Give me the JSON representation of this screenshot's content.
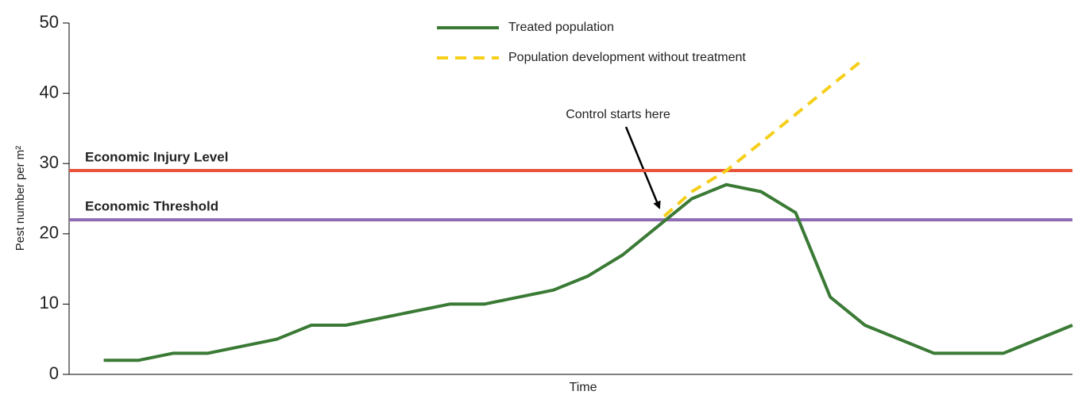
{
  "chart_data": {
    "type": "line",
    "xlabel": "Time",
    "ylabel": "Pest number per m²",
    "xlim": [
      -1,
      28
    ],
    "ylim": [
      0,
      50
    ],
    "yticks": [
      0,
      10,
      20,
      30,
      40,
      50
    ],
    "legend": "top",
    "series": [
      {
        "name": "Treated population",
        "color": "#3a7a35",
        "dash": false,
        "x": [
          0,
          1,
          2,
          3,
          5,
          6,
          7,
          10,
          11,
          13,
          14,
          15,
          16,
          17,
          18,
          19,
          20,
          21,
          22,
          24,
          25,
          26,
          28
        ],
        "values": [
          2,
          2,
          3,
          3,
          5,
          7,
          7,
          10,
          10,
          12,
          14,
          17,
          21,
          25,
          27,
          26,
          23,
          11,
          7,
          3,
          3,
          3,
          7
        ]
      },
      {
        "name": "Population development without treatment",
        "color": "#f5cf1a",
        "dash": true,
        "x": [
          16.2,
          17,
          18,
          19,
          20,
          21,
          22
        ],
        "values": [
          22.5,
          26,
          29,
          33,
          37,
          41,
          45
        ]
      }
    ],
    "reference_lines": [
      {
        "name": "Economic Injury Level",
        "value": 29,
        "color": "#e8533a"
      },
      {
        "name": "Economic Threshold",
        "value": 22,
        "color": "#8e6bb5"
      }
    ],
    "annotation": "Control starts here"
  }
}
